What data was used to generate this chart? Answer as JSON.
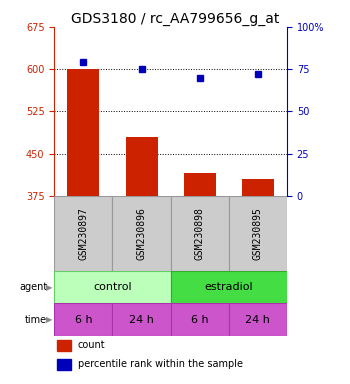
{
  "title": "GDS3180 / rc_AA799656_g_at",
  "samples": [
    "GSM230897",
    "GSM230896",
    "GSM230898",
    "GSM230895"
  ],
  "bar_values": [
    600,
    480,
    415,
    405
  ],
  "percentile_values": [
    79,
    75,
    70,
    72
  ],
  "left_ylim": [
    375,
    675
  ],
  "left_yticks": [
    375,
    450,
    525,
    600,
    675
  ],
  "right_ylim": [
    0,
    100
  ],
  "right_yticks": [
    0,
    25,
    50,
    75,
    100
  ],
  "right_yticklabels": [
    "0",
    "25",
    "50",
    "75",
    "100%"
  ],
  "bar_color": "#cc2200",
  "dot_color": "#0000bb",
  "agent_light_green": "#bbffbb",
  "agent_dark_green": "#44dd44",
  "time_color": "#cc55cc",
  "sample_bg_color": "#cccccc",
  "legend_count_color": "#cc2200",
  "legend_dot_color": "#0000bb",
  "time_labels": [
    "6 h",
    "24 h",
    "6 h",
    "24 h"
  ],
  "title_fontsize": 10,
  "tick_fontsize": 7,
  "label_fontsize": 7,
  "sample_fontsize": 7,
  "table_fontsize": 8
}
